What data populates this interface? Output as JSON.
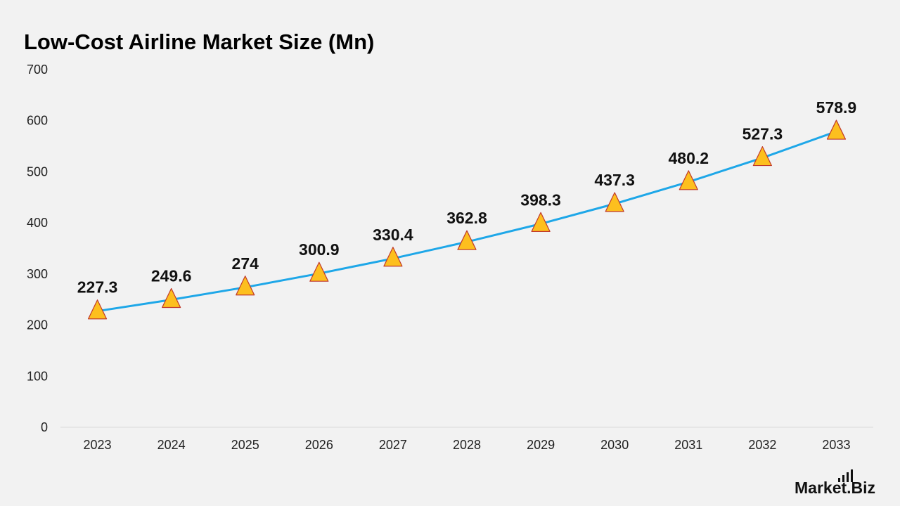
{
  "brand": {
    "name_part1": "Market",
    "name_part2": ".Biz"
  },
  "chart_data": {
    "type": "line",
    "title": "Low-Cost Airline Market Size (Mn)",
    "xlabel": "",
    "ylabel": "",
    "categories": [
      "2023",
      "2024",
      "2025",
      "2026",
      "2027",
      "2028",
      "2029",
      "2030",
      "2031",
      "2032",
      "2033"
    ],
    "series": [
      {
        "values": [
          227.3,
          249.6,
          274,
          300.9,
          330.4,
          362.8,
          398.3,
          437.3,
          480.2,
          527.3,
          578.9
        ],
        "line_color": "#1ea7e8",
        "marker": "triangle",
        "marker_fill": "#fdbf1e",
        "marker_stroke": "#c0392b"
      }
    ],
    "data_labels": [
      "227.3",
      "249.6",
      "274",
      "300.9",
      "330.4",
      "362.8",
      "398.3",
      "437.3",
      "480.2",
      "527.3",
      "578.9"
    ],
    "ylim": [
      0,
      700
    ],
    "yticks": [
      0,
      100,
      200,
      300,
      400,
      500,
      600,
      700
    ],
    "grid": false,
    "legend": "none"
  }
}
